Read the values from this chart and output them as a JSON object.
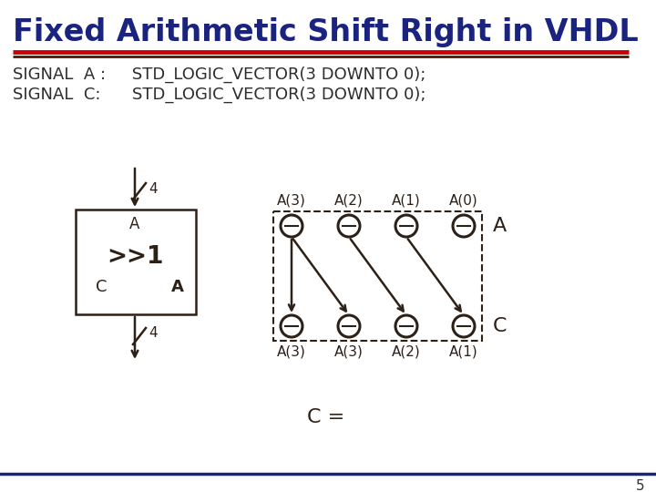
{
  "title": "Fixed Arithmetic Shift Right in VHDL",
  "title_color": "#1a237e",
  "title_fontsize": 24,
  "signal_color": "#2d2d2d",
  "signal_fontsize": 13,
  "top_labels": [
    "A(3)",
    "A(2)",
    "A(1)",
    "A(0)"
  ],
  "bot_labels": [
    "A(3)",
    "A(3)",
    "A(2)",
    "A(1)"
  ],
  "right_label_top": "A",
  "right_label_bot": "C",
  "c_eq": "C =",
  "page_num": "5",
  "bg_color": "#ffffff",
  "diagram_color": "#2d2016",
  "blue_line_color": "#1a237e",
  "red_line_color": "#cc0000",
  "dark_line_color": "#4a1a00"
}
